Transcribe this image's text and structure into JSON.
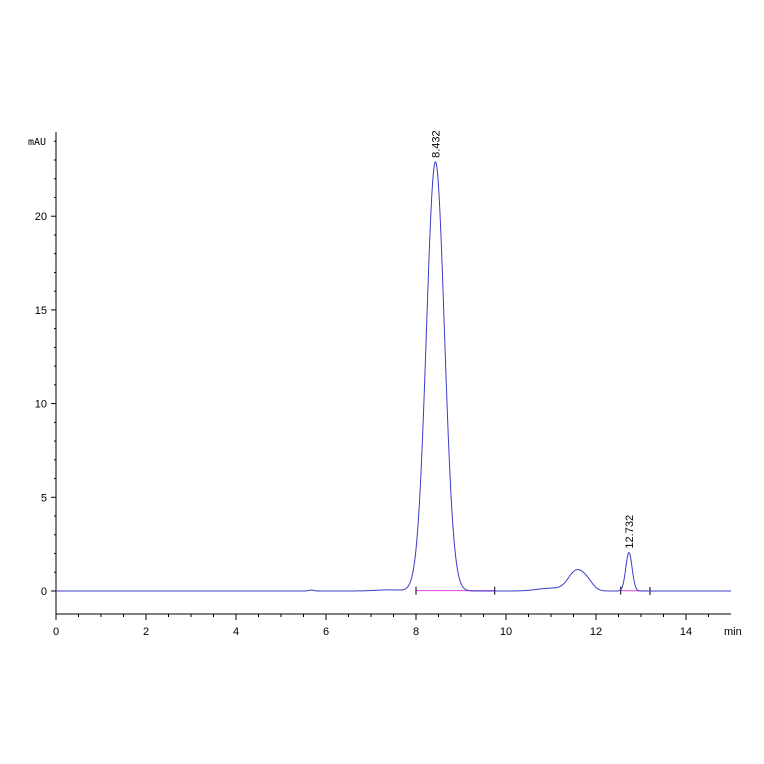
{
  "chart_data": {
    "type": "line",
    "ylabel": "mAU",
    "xlabel": "min",
    "xlim": [
      0,
      15
    ],
    "ylim": [
      -1.2,
      24.5
    ],
    "x_ticks": [
      0,
      2,
      4,
      6,
      8,
      10,
      12,
      14
    ],
    "y_ticks": [
      0,
      5,
      10,
      15,
      20
    ],
    "grid": false,
    "colors": {
      "signal": "#3b3bc8",
      "baseline": "#e040e0",
      "axis": "#000000"
    },
    "series": [
      {
        "peaks": [
          {
            "center": 8.432,
            "height": 22.9,
            "width": 0.2
          },
          {
            "center": 11.55,
            "height": 1.0,
            "width": 0.17
          },
          {
            "center": 11.8,
            "height": 0.45,
            "width": 0.14
          },
          {
            "center": 11.0,
            "height": 0.15,
            "width": 0.3
          },
          {
            "center": 12.732,
            "height": 2.05,
            "width": 0.07
          },
          {
            "center": 7.4,
            "height": 0.06,
            "width": 0.3
          },
          {
            "center": 5.67,
            "height": 0.05,
            "width": 0.06
          }
        ]
      }
    ],
    "annotations": [
      {
        "text": "8.432",
        "x": 8.432,
        "y": 22.9
      },
      {
        "text": "12.732",
        "x": 12.732,
        "y": 2.05
      }
    ],
    "baselines": [
      {
        "x": [
          8.0,
          9.75
        ],
        "y": [
          0.02,
          0.02
        ]
      },
      {
        "x": [
          12.55,
          13.2
        ],
        "y": [
          0.02,
          0.0
        ]
      }
    ]
  }
}
